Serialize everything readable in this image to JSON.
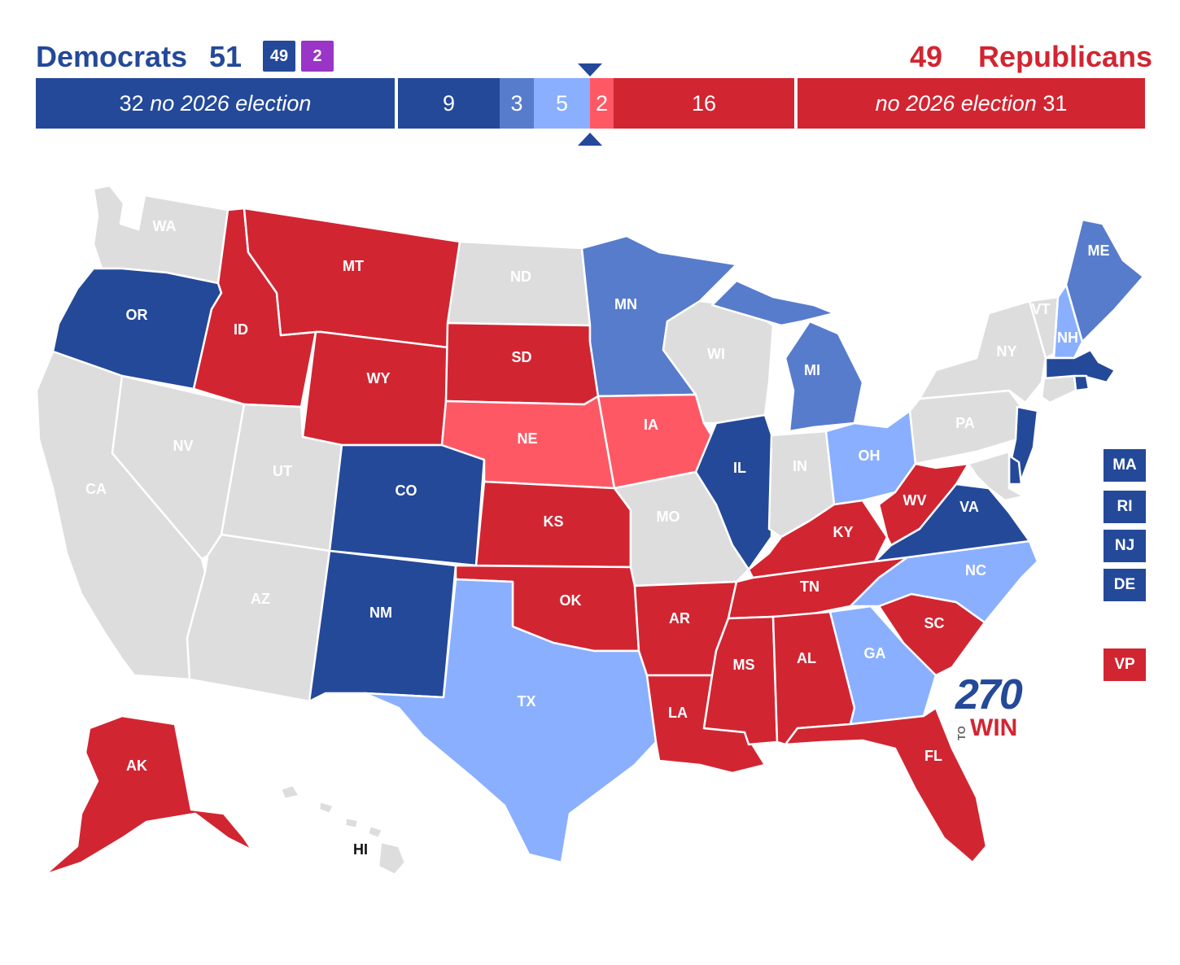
{
  "header": {
    "dem_name": "Democrats",
    "dem_total": "51",
    "dem_chip_dem": "49",
    "dem_chip_ind": "2",
    "rep_total": "49",
    "rep_name": "Republicans"
  },
  "balance_bar": {
    "dem_no_election_count": "32",
    "dem_no_election_text": "no 2026 election",
    "safe_dem": "9",
    "likely_dem": "3",
    "lean_dem": "5",
    "lean_rep": "2",
    "safe_rep": "16",
    "rep_no_election_text": "no 2026 election",
    "rep_no_election_count": "31"
  },
  "colors": {
    "safe_dem": "#244999",
    "likely_dem": "#577ccc",
    "lean_dem": "#8aafff",
    "lean_rep": "#ff5865",
    "safe_rep": "#d22532",
    "no_election": "#dddddd",
    "independent": "#9a35c8"
  },
  "states": {
    "WA": {
      "label": "WA",
      "rating": "no_election"
    },
    "OR": {
      "label": "OR",
      "rating": "safe_dem"
    },
    "CA": {
      "label": "CA",
      "rating": "no_election"
    },
    "ID": {
      "label": "ID",
      "rating": "safe_rep"
    },
    "NV": {
      "label": "NV",
      "rating": "no_election"
    },
    "MT": {
      "label": "MT",
      "rating": "safe_rep"
    },
    "WY": {
      "label": "WY",
      "rating": "safe_rep"
    },
    "UT": {
      "label": "UT",
      "rating": "no_election"
    },
    "AZ": {
      "label": "AZ",
      "rating": "no_election"
    },
    "CO": {
      "label": "CO",
      "rating": "safe_dem"
    },
    "NM": {
      "label": "NM",
      "rating": "safe_dem"
    },
    "ND": {
      "label": "ND",
      "rating": "no_election"
    },
    "SD": {
      "label": "SD",
      "rating": "safe_rep"
    },
    "NE": {
      "label": "NE",
      "rating": "lean_rep"
    },
    "KS": {
      "label": "KS",
      "rating": "safe_rep"
    },
    "OK": {
      "label": "OK",
      "rating": "safe_rep"
    },
    "TX": {
      "label": "TX",
      "rating": "lean_dem"
    },
    "MN": {
      "label": "MN",
      "rating": "likely_dem"
    },
    "IA": {
      "label": "IA",
      "rating": "lean_rep"
    },
    "MO": {
      "label": "MO",
      "rating": "no_election"
    },
    "AR": {
      "label": "AR",
      "rating": "safe_rep"
    },
    "LA": {
      "label": "LA",
      "rating": "safe_rep"
    },
    "WI": {
      "label": "WI",
      "rating": "no_election"
    },
    "IL": {
      "label": "IL",
      "rating": "safe_dem"
    },
    "MI": {
      "label": "MI",
      "rating": "likely_dem"
    },
    "IN": {
      "label": "IN",
      "rating": "no_election"
    },
    "OH": {
      "label": "OH",
      "rating": "lean_dem"
    },
    "KY": {
      "label": "KY",
      "rating": "safe_rep"
    },
    "TN": {
      "label": "TN",
      "rating": "safe_rep"
    },
    "MS": {
      "label": "MS",
      "rating": "safe_rep"
    },
    "AL": {
      "label": "AL",
      "rating": "safe_rep"
    },
    "GA": {
      "label": "GA",
      "rating": "lean_dem"
    },
    "FL": {
      "label": "FL",
      "rating": "safe_rep"
    },
    "SC": {
      "label": "SC",
      "rating": "safe_rep"
    },
    "NC": {
      "label": "NC",
      "rating": "lean_dem"
    },
    "VA": {
      "label": "VA",
      "rating": "safe_dem"
    },
    "WV": {
      "label": "WV",
      "rating": "safe_rep"
    },
    "PA": {
      "label": "PA",
      "rating": "no_election"
    },
    "NY": {
      "label": "NY",
      "rating": "no_election"
    },
    "VT": {
      "label": "VT",
      "rating": "no_election"
    },
    "NH": {
      "label": "NH",
      "rating": "lean_dem"
    },
    "ME": {
      "label": "ME",
      "rating": "likely_dem"
    },
    "AK": {
      "label": "AK",
      "rating": "safe_rep"
    },
    "HI": {
      "label": "HI",
      "rating": "no_election"
    }
  },
  "side_boxes": {
    "ma": "MA",
    "ri": "RI",
    "nj": "NJ",
    "de": "DE",
    "vp": "VP"
  },
  "logo": {
    "number": "270",
    "to": "TO",
    "win": "WIN"
  }
}
